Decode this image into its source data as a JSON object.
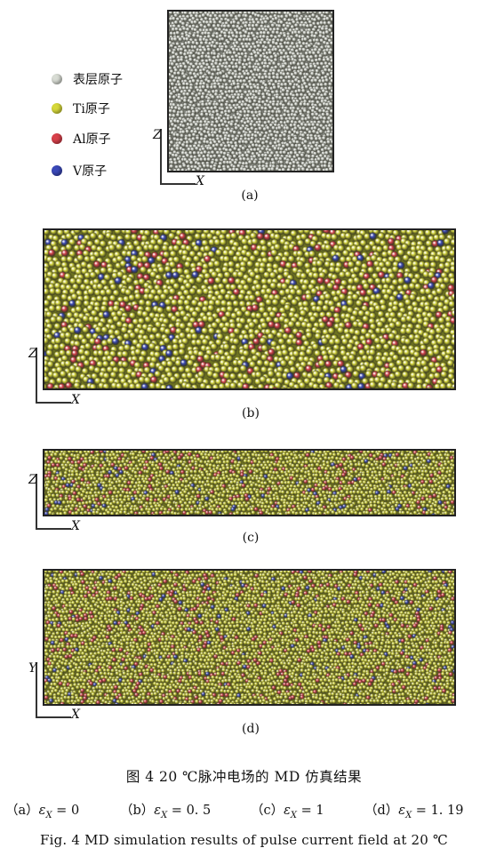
{
  "legend": [
    {
      "label": "表层原子",
      "color": "#d8dcd4"
    },
    {
      "label": "Ti原子",
      "color": "#d6d83a"
    },
    {
      "label": "Al原子",
      "color": "#d8404a"
    },
    {
      "label": "V原子",
      "color": "#3a48b8"
    }
  ],
  "axes": {
    "a": {
      "vertical": "Z",
      "horizontal": "X"
    },
    "b": {
      "vertical": "Z",
      "horizontal": "X"
    },
    "c": {
      "vertical": "Z",
      "horizontal": "X"
    },
    "d": {
      "vertical": "Y",
      "horizontal": "X"
    }
  },
  "panels": {
    "a": {
      "label": "(a)"
    },
    "b": {
      "label": "(b)"
    },
    "c": {
      "label": "(c)"
    },
    "d": {
      "label": "(d)"
    }
  },
  "caption": {
    "title_cn": "图 4 20 ℃脉冲电场的 MD 仿真结果",
    "conditions": [
      {
        "prefix": "（a）",
        "value": "0"
      },
      {
        "prefix": "（b）",
        "value": "0. 5"
      },
      {
        "prefix": "（c）",
        "value": "1"
      },
      {
        "prefix": "（d）",
        "value": "1. 19"
      }
    ],
    "epsilon_symbol": "ε",
    "epsilon_sub": "X",
    "title_en": "Fig. 4 MD simulation results of pulse current field at 20 ℃"
  }
}
